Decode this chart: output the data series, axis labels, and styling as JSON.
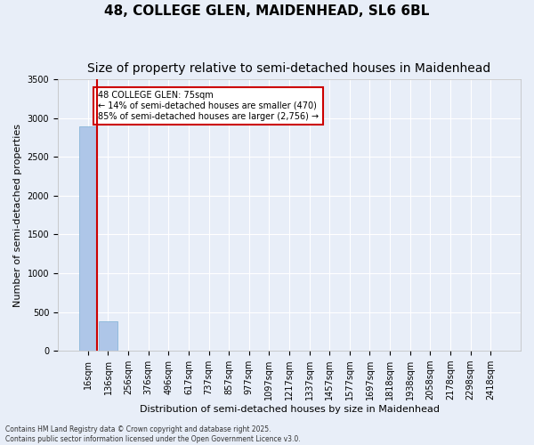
{
  "title_line1": "48, COLLEGE GLEN, MAIDENHEAD, SL6 6BL",
  "title_line2": "Size of property relative to semi-detached houses in Maidenhead",
  "xlabel": "Distribution of semi-detached houses by size in Maidenhead",
  "ylabel": "Number of semi-detached properties",
  "annotation_title": "48 COLLEGE GLEN: 75sqm",
  "annotation_line2": "← 14% of semi-detached houses are smaller (470)",
  "annotation_line3": "85% of semi-detached houses are larger (2,756) →",
  "footer_line1": "Contains HM Land Registry data © Crown copyright and database right 2025.",
  "footer_line2": "Contains public sector information licensed under the Open Government Licence v3.0.",
  "bins": [
    "16sqm",
    "136sqm",
    "256sqm",
    "376sqm",
    "496sqm",
    "617sqm",
    "737sqm",
    "857sqm",
    "977sqm",
    "1097sqm",
    "1217sqm",
    "1337sqm",
    "1457sqm",
    "1577sqm",
    "1697sqm",
    "1818sqm",
    "1938sqm",
    "2058sqm",
    "2178sqm",
    "2298sqm",
    "2418sqm"
  ],
  "bar_values": [
    2900,
    375,
    0,
    0,
    0,
    0,
    0,
    0,
    0,
    0,
    0,
    0,
    0,
    0,
    0,
    0,
    0,
    0,
    0,
    0,
    0
  ],
  "bar_color": "#aec6e8",
  "bar_edge_color": "#7bafd4",
  "ylim": [
    0,
    3500
  ],
  "yticks": [
    0,
    500,
    1000,
    1500,
    2000,
    2500,
    3000,
    3500
  ],
  "bg_color": "#e8eef8",
  "grid_color": "#ffffff",
  "annotation_box_color": "#ffffff",
  "annotation_box_edge": "#cc0000",
  "red_line_color": "#cc0000",
  "title_fontsize": 11,
  "subtitle_fontsize": 10,
  "axis_label_fontsize": 8,
  "tick_fontsize": 7
}
